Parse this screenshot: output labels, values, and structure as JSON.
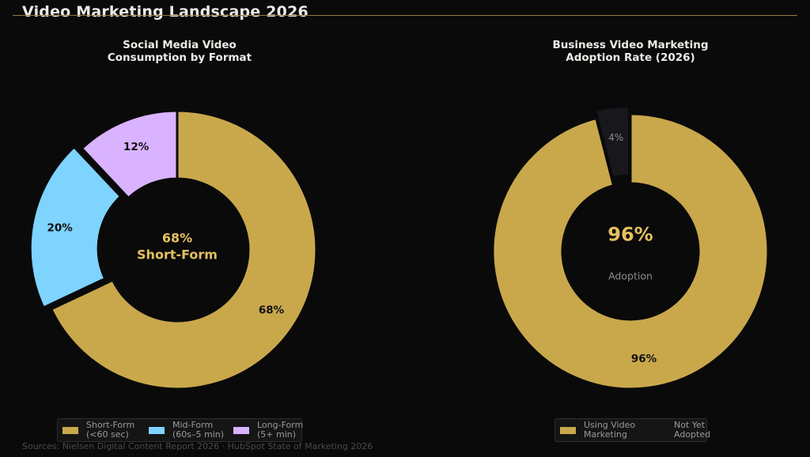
{
  "page": {
    "title": "Video Marketing Landscape 2026",
    "source": "Sources: Nielsen Digital Content Report 2026 · HubSpot State of Marketing 2026"
  },
  "colors": {
    "background": "#0a0a0a",
    "gold": "#c9a84c",
    "gold_text": "#e6c060",
    "sky": "#7fd3ff",
    "lavender": "#d9b3ff",
    "dark_slice": "#17171c",
    "muted_text": "#8e8e8e"
  },
  "chart_data": [
    {
      "type": "pie",
      "variant": "donut",
      "title": "Social Media Video\nConsumption by Format",
      "slices": [
        {
          "key": "short",
          "label": "Short-Form\n(<60 sec)",
          "value": 68,
          "value_label": "68%",
          "color": "#c9a84c",
          "exploded": false
        },
        {
          "key": "mid",
          "label": "Mid-Form\n(60s–5 min)",
          "value": 20,
          "value_label": "20%",
          "color": "#7fd3ff",
          "exploded": true
        },
        {
          "key": "long",
          "label": "Long-Form\n(5+ min)",
          "value": 12,
          "value_label": "12%",
          "color": "#d9b3ff",
          "exploded": false
        }
      ],
      "center_text": [
        "68%",
        "Short-Form"
      ],
      "legend_position": "bottom"
    },
    {
      "type": "pie",
      "variant": "donut",
      "title": "Business Video Marketing\nAdoption Rate (2026)",
      "slices": [
        {
          "key": "using",
          "label": "Using Video\nMarketing",
          "value": 96,
          "value_label": "96%",
          "color": "#c9a84c",
          "exploded": false
        },
        {
          "key": "not",
          "label": "Not Yet\nAdopted",
          "value": 4,
          "value_label": "4%",
          "color": "#17171c",
          "exploded": true
        }
      ],
      "center_text": [
        "96%",
        "Adoption"
      ],
      "legend_position": "bottom"
    }
  ]
}
